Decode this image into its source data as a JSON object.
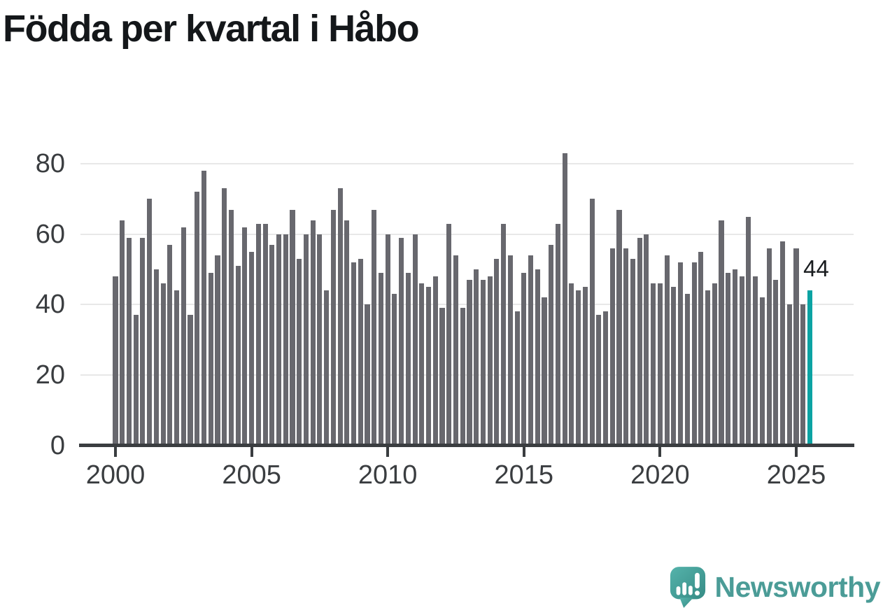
{
  "page": {
    "title": "Födda per kvartal i Håbo"
  },
  "chart_data": {
    "type": "bar",
    "title": "Födda per kvartal i Håbo",
    "x_unit": "quarter",
    "start_year": 2000,
    "start_quarter": 1,
    "values": [
      48,
      64,
      59,
      37,
      59,
      70,
      50,
      46,
      57,
      44,
      62,
      37,
      72,
      78,
      49,
      54,
      73,
      67,
      51,
      62,
      55,
      63,
      63,
      57,
      60,
      60,
      67,
      53,
      60,
      64,
      60,
      44,
      67,
      73,
      64,
      52,
      53,
      40,
      67,
      49,
      60,
      43,
      59,
      49,
      60,
      46,
      45,
      48,
      39,
      63,
      54,
      39,
      47,
      50,
      47,
      48,
      53,
      63,
      54,
      38,
      49,
      54,
      50,
      42,
      57,
      63,
      83,
      46,
      44,
      45,
      70,
      37,
      38,
      56,
      67,
      56,
      53,
      59,
      60,
      46,
      46,
      54,
      45,
      52,
      43,
      52,
      55,
      44,
      46,
      64,
      49,
      50,
      48,
      65,
      48,
      42,
      56,
      47,
      58,
      40,
      56,
      40,
      44
    ],
    "highlight_last_value": 44,
    "annotation": "44",
    "xticks": [
      "2000",
      "2005",
      "2010",
      "2015",
      "2020",
      "2025"
    ],
    "yticks": [
      0,
      20,
      40,
      60,
      80
    ],
    "ylim": [
      0,
      88
    ],
    "grid": "horizontal-only",
    "legend": "none",
    "bar_color": "#68686e",
    "highlight_color": "#0ba3a3",
    "axis_color": "#3a3d40",
    "gridline_color": "#e8e8e8"
  },
  "branding": {
    "logo_text": "Newsworthy",
    "logo_icon": "newsworthy-speech-bubble-chart-icon",
    "logo_text_color": "#4b9c97",
    "logo_icon_color_top": "#55b3ab",
    "logo_icon_color_bottom": "#368b85"
  }
}
